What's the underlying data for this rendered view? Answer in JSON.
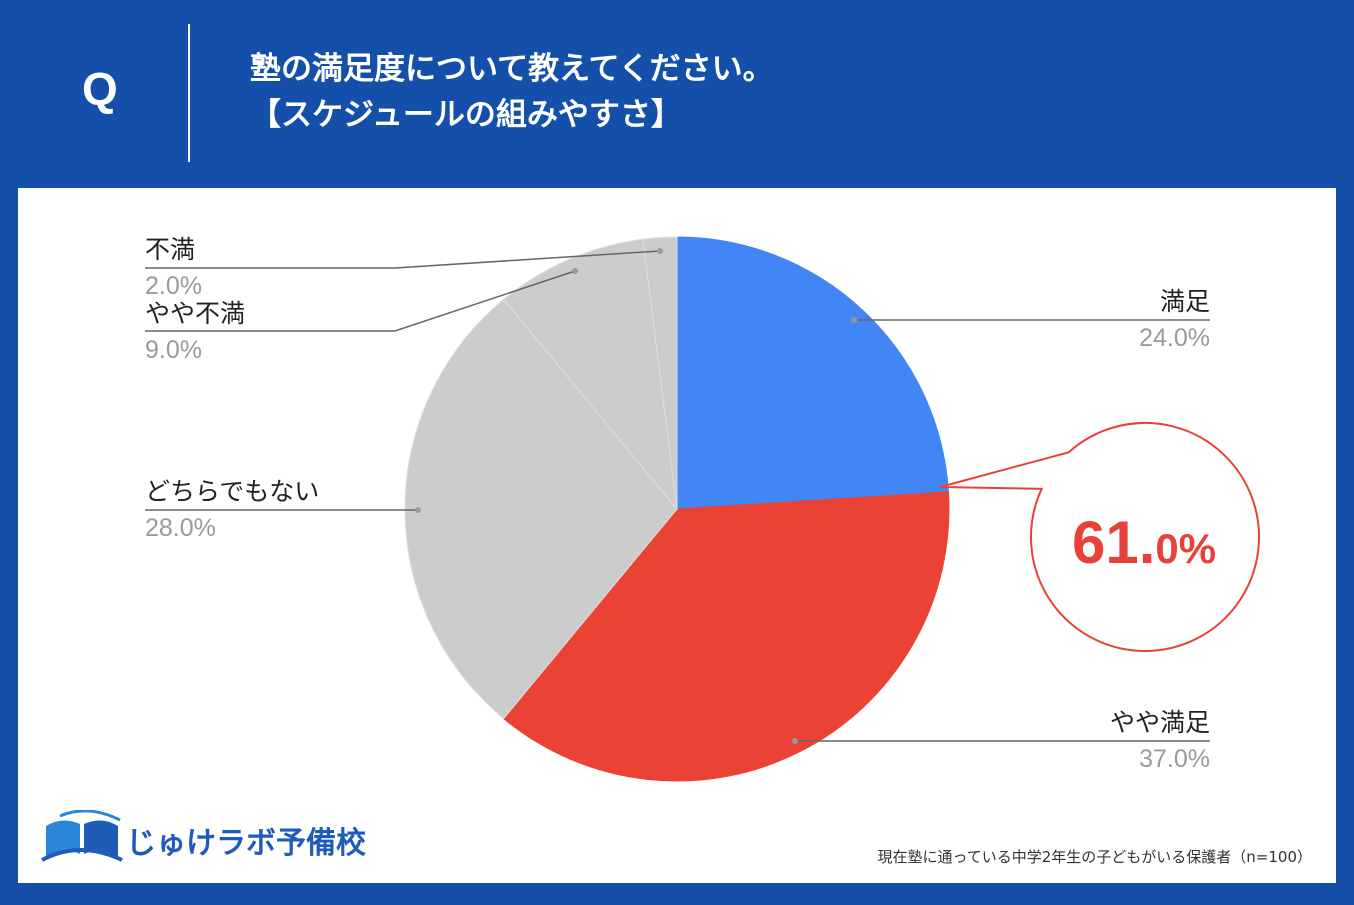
{
  "header": {
    "q_mark": "Q",
    "title_line1": "塾の満足度について教えてください。",
    "title_line2": "【スケジュールの組みやすさ】"
  },
  "chart_data": {
    "type": "pie",
    "title": "",
    "slices": [
      {
        "label": "満足",
        "pct_label": "24.0%",
        "value": 24.0,
        "color": "#4285f4"
      },
      {
        "label": "やや満足",
        "pct_label": "37.0%",
        "value": 37.0,
        "color": "#ea4335"
      },
      {
        "label": "どちらでもない",
        "pct_label": "28.0%",
        "value": 28.0,
        "color": "#cccccc"
      },
      {
        "label": "やや不満",
        "pct_label": "9.0%",
        "value": 9.0,
        "color": "#cccccc"
      },
      {
        "label": "不満",
        "pct_label": "2.0%",
        "value": 2.0,
        "color": "#cccccc"
      }
    ],
    "callout": {
      "main": "61.",
      "small": "0%",
      "color": "#e8413a"
    }
  },
  "logo": {
    "text": "じゅけラボ予備校",
    "icon": "open-book-icon"
  },
  "footnote": "現在塾に通っている中学2年生の子どもがいる保護者（n=100）"
}
